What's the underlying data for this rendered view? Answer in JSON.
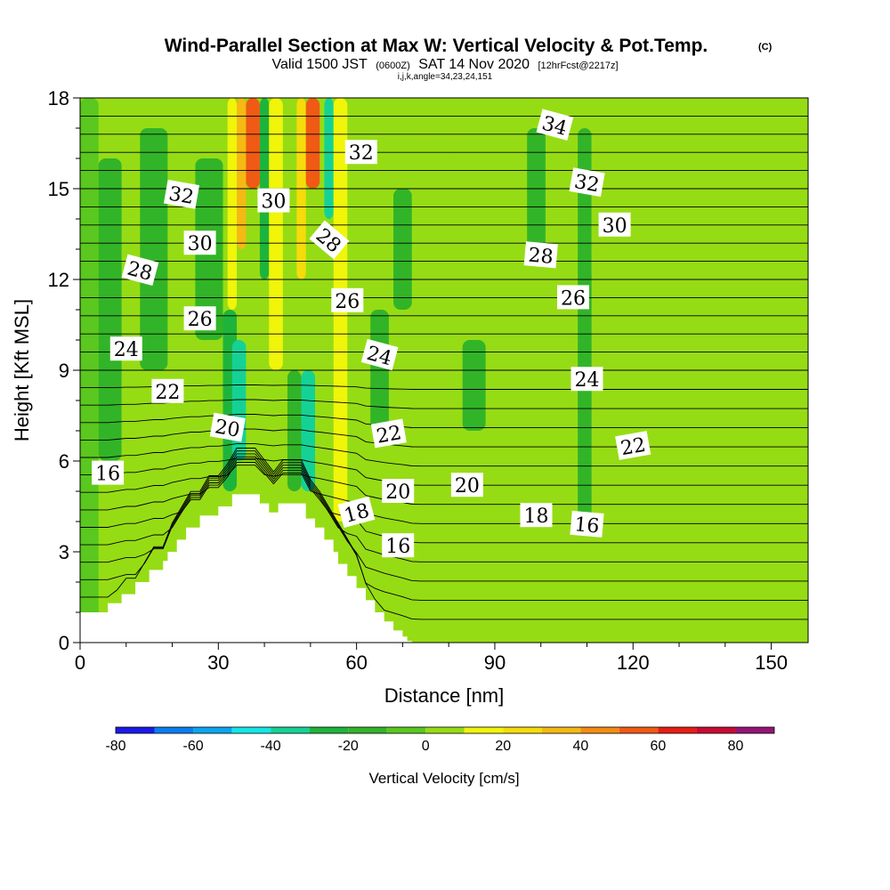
{
  "chart_data": {
    "type": "heatmap",
    "title": "Wind-Parallel Section at Max W: Vertical Velocity & Pot.Temp.",
    "title_mark": "(C)",
    "subtitle": {
      "prefix": "Valid 1500 JST",
      "utc": "(0600Z)",
      "date": "SAT 14 Nov 2020",
      "forecast": "[12hrFcst@2217z]"
    },
    "grid_info": "i,j,k,angle=34,23,24,151",
    "xlabel": "Distance [nm]",
    "ylabel": "Height [Kft MSL]",
    "xlim": [
      0,
      158
    ],
    "ylim": [
      0,
      18
    ],
    "x_ticks": [
      0,
      30,
      60,
      90,
      120,
      150
    ],
    "y_ticks": [
      0,
      3,
      6,
      9,
      12,
      15,
      18
    ],
    "colorbar": {
      "title": "Vertical Velocity [cm/s]",
      "bounds": [
        -80,
        -70,
        -60,
        -50,
        -40,
        -30,
        -20,
        -10,
        0,
        10,
        20,
        30,
        40,
        50,
        60,
        70,
        80,
        90
      ],
      "colors": [
        "#1a1ae6",
        "#0a7df0",
        "#0aa5f0",
        "#14e6e6",
        "#14d296",
        "#1eb43c",
        "#32b428",
        "#5ac81e",
        "#96dc14",
        "#f0f50a",
        "#f5dc0a",
        "#f5b914",
        "#f58c14",
        "#f05a14",
        "#e61e14",
        "#c80a32",
        "#961478"
      ],
      "tick_values": [
        -80,
        -60,
        -40,
        -20,
        0,
        20,
        40,
        60,
        80
      ]
    },
    "velocity_cells": [
      {
        "x": [
          0,
          4
        ],
        "y": [
          0,
          18
        ],
        "w": -5
      },
      {
        "x": [
          4,
          9
        ],
        "y": [
          6,
          16
        ],
        "w": -15
      },
      {
        "x": [
          9,
          16
        ],
        "y": [
          0,
          9
        ],
        "w": 5
      },
      {
        "x": [
          13,
          19
        ],
        "y": [
          9,
          17
        ],
        "w": -15
      },
      {
        "x": [
          20,
          30
        ],
        "y": [
          3,
          18
        ],
        "w": 5
      },
      {
        "x": [
          25,
          31
        ],
        "y": [
          10,
          16
        ],
        "w": -15
      },
      {
        "x": [
          31,
          34
        ],
        "y": [
          5,
          11
        ],
        "w": -25
      },
      {
        "x": [
          33,
          36
        ],
        "y": [
          6,
          10
        ],
        "w": -35
      },
      {
        "x": [
          32,
          34
        ],
        "y": [
          11,
          18
        ],
        "w": 15
      },
      {
        "x": [
          34,
          36
        ],
        "y": [
          13,
          18
        ],
        "w": 35
      },
      {
        "x": [
          36,
          39
        ],
        "y": [
          15,
          18
        ],
        "w": 55
      },
      {
        "x": [
          39,
          41
        ],
        "y": [
          12,
          18
        ],
        "w": -25
      },
      {
        "x": [
          41,
          44
        ],
        "y": [
          9,
          18
        ],
        "w": 15
      },
      {
        "x": [
          45,
          48
        ],
        "y": [
          5,
          9
        ],
        "w": -15
      },
      {
        "x": [
          48,
          51
        ],
        "y": [
          5,
          9
        ],
        "w": -35
      },
      {
        "x": [
          47,
          49
        ],
        "y": [
          12,
          18
        ],
        "w": 25
      },
      {
        "x": [
          49,
          52
        ],
        "y": [
          15,
          18
        ],
        "w": 55
      },
      {
        "x": [
          53,
          55
        ],
        "y": [
          14,
          18
        ],
        "w": -35
      },
      {
        "x": [
          55,
          58
        ],
        "y": [
          4,
          18
        ],
        "w": 15
      },
      {
        "x": [
          63,
          67
        ],
        "y": [
          7,
          11
        ],
        "w": -15
      },
      {
        "x": [
          68,
          72
        ],
        "y": [
          11,
          15
        ],
        "w": -15
      },
      {
        "x": [
          75,
          80
        ],
        "y": [
          4,
          18
        ],
        "w": 5
      },
      {
        "x": [
          83,
          88
        ],
        "y": [
          7,
          10
        ],
        "w": -15
      },
      {
        "x": [
          91,
          96
        ],
        "y": [
          10,
          15
        ],
        "w": 5
      },
      {
        "x": [
          97,
          101
        ],
        "y": [
          13,
          17
        ],
        "w": -15
      },
      {
        "x": [
          103,
          106
        ],
        "y": [
          12,
          18
        ],
        "w": 5
      },
      {
        "x": [
          108,
          111
        ],
        "y": [
          4,
          17
        ],
        "w": -15
      },
      {
        "x": [
          111,
          116
        ],
        "y": [
          12,
          18
        ],
        "w": 5
      },
      {
        "x": [
          124,
          135
        ],
        "y": [
          5,
          9
        ],
        "w": 5
      },
      {
        "x": [
          100,
          124
        ],
        "y": [
          0,
          4
        ],
        "w": 5
      },
      {
        "x": [
          145,
          158
        ],
        "y": [
          2,
          4
        ],
        "w": 5
      }
    ],
    "theta_labels": [
      {
        "x": 6,
        "y": 5.6,
        "value": "16",
        "angle": 0
      },
      {
        "x": 69,
        "y": 3.2,
        "value": "16",
        "angle": 0
      },
      {
        "x": 110,
        "y": 3.9,
        "value": "16",
        "angle": 5
      },
      {
        "x": 60,
        "y": 4.3,
        "value": "18",
        "angle": -15
      },
      {
        "x": 99,
        "y": 4.2,
        "value": "18",
        "angle": 0
      },
      {
        "x": 32,
        "y": 7.1,
        "value": "20",
        "angle": 10
      },
      {
        "x": 69,
        "y": 5.0,
        "value": "20",
        "angle": 0
      },
      {
        "x": 84,
        "y": 5.2,
        "value": "20",
        "angle": 0
      },
      {
        "x": 19,
        "y": 8.3,
        "value": "22",
        "angle": 0
      },
      {
        "x": 67,
        "y": 6.9,
        "value": "22",
        "angle": -10
      },
      {
        "x": 120,
        "y": 6.5,
        "value": "22",
        "angle": -10
      },
      {
        "x": 10,
        "y": 9.7,
        "value": "24",
        "angle": 0
      },
      {
        "x": 65,
        "y": 9.5,
        "value": "24",
        "angle": 15
      },
      {
        "x": 110,
        "y": 8.7,
        "value": "24",
        "angle": 0
      },
      {
        "x": 26,
        "y": 10.7,
        "value": "26",
        "angle": 0
      },
      {
        "x": 58,
        "y": 11.3,
        "value": "26",
        "angle": 0
      },
      {
        "x": 107,
        "y": 11.4,
        "value": "26",
        "angle": 0
      },
      {
        "x": 13,
        "y": 12.3,
        "value": "28",
        "angle": 15
      },
      {
        "x": 54,
        "y": 13.3,
        "value": "28",
        "angle": 40
      },
      {
        "x": 100,
        "y": 12.8,
        "value": "28",
        "angle": 5
      },
      {
        "x": 26,
        "y": 13.2,
        "value": "30",
        "angle": 0
      },
      {
        "x": 42,
        "y": 14.6,
        "value": "30",
        "angle": 0
      },
      {
        "x": 116,
        "y": 13.8,
        "value": "30",
        "angle": 0
      },
      {
        "x": 22,
        "y": 14.8,
        "value": "32",
        "angle": 10
      },
      {
        "x": 61,
        "y": 16.2,
        "value": "32",
        "angle": 0
      },
      {
        "x": 110,
        "y": 15.2,
        "value": "32",
        "angle": 10
      },
      {
        "x": 103,
        "y": 17.1,
        "value": "34",
        "angle": 15
      }
    ],
    "terrain": {
      "x": [
        0,
        6,
        6,
        9,
        9,
        12,
        12,
        15,
        15,
        18,
        18,
        19,
        19,
        21,
        21,
        23,
        23,
        26,
        26,
        30,
        30,
        33,
        33,
        37,
        37,
        39,
        39,
        41,
        41,
        43,
        43,
        46,
        46,
        49,
        49,
        51,
        51,
        53,
        53,
        55,
        55,
        56,
        56,
        58,
        58,
        60,
        60,
        62,
        62,
        64,
        64,
        66,
        66,
        68,
        68,
        70,
        70,
        71,
        71,
        72,
        72
      ],
      "y": [
        1.0,
        1.0,
        1.3,
        1.3,
        1.6,
        1.6,
        2.0,
        2.0,
        2.4,
        2.4,
        2.7,
        2.7,
        3.0,
        3.0,
        3.4,
        3.4,
        3.8,
        3.8,
        4.2,
        4.2,
        4.5,
        4.5,
        4.9,
        4.9,
        4.9,
        4.9,
        4.6,
        4.6,
        4.3,
        4.3,
        4.6,
        4.6,
        4.6,
        4.6,
        4.1,
        4.1,
        3.8,
        3.8,
        3.4,
        3.4,
        3.0,
        3.0,
        2.6,
        2.6,
        2.2,
        2.2,
        1.8,
        1.8,
        1.4,
        1.4,
        1.0,
        1.0,
        0.7,
        0.7,
        0.4,
        0.4,
        0.2,
        0.2,
        0.05,
        0.05,
        0
      ]
    }
  }
}
